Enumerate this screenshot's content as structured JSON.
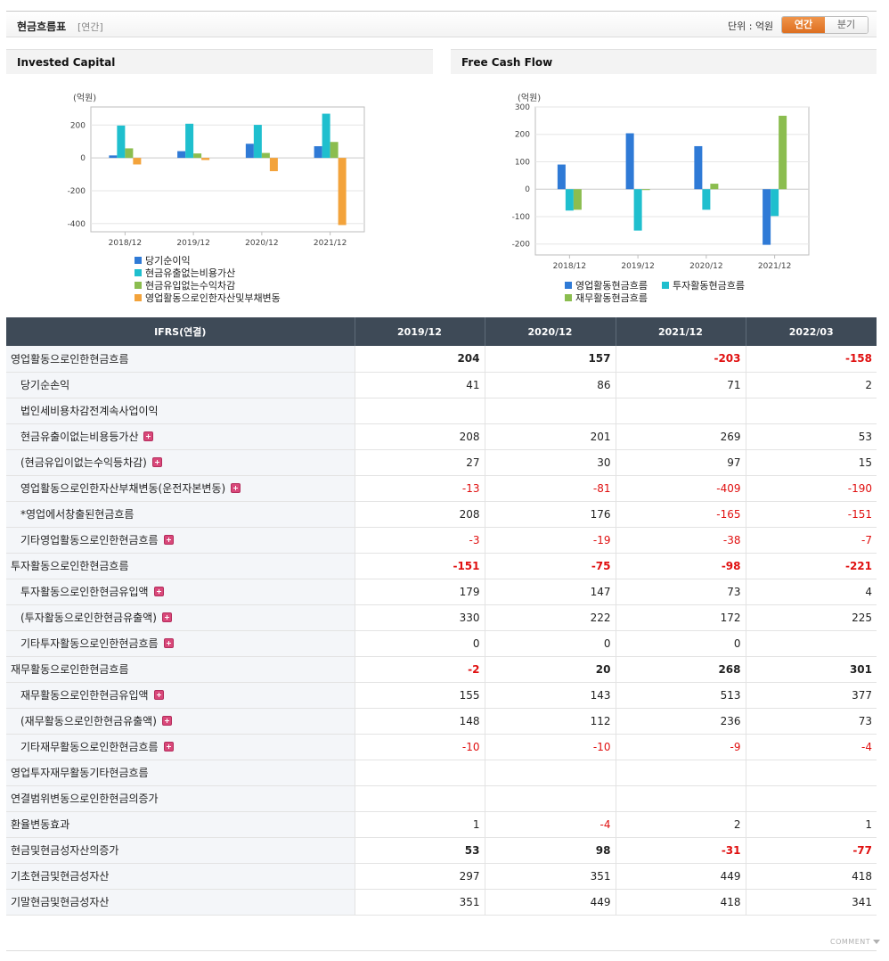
{
  "header": {
    "title": "현금흐름표",
    "sub": "[연간]",
    "unit": "단위 : 억원",
    "toggle": {
      "annual": "연간",
      "quarterly": "분기"
    }
  },
  "colors": {
    "blue": "#2f7ad6",
    "teal": "#1fbfce",
    "green": "#8bbd4f",
    "orange": "#f3a33b",
    "accent": "#e57b2f",
    "negative": "#e01010"
  },
  "charts": {
    "invested_capital": {
      "title": "Invested Capital",
      "unit_label": "(억원)"
    },
    "free_cash_flow": {
      "title": "Free Cash Flow",
      "unit_label": "(억원)"
    }
  },
  "chart_data": [
    {
      "type": "bar",
      "title": "Invested Capital",
      "ylabel": "(억원)",
      "categories": [
        "2018/12",
        "2019/12",
        "2020/12",
        "2021/12"
      ],
      "ylim": [
        -450,
        310
      ],
      "yticks": [
        200,
        0,
        -200,
        -400
      ],
      "legend_position": "bottom",
      "series": [
        {
          "name": "당기순이익",
          "color": "#2f7ad6",
          "values": [
            15,
            41,
            86,
            71
          ]
        },
        {
          "name": "현금유출없는비용가산",
          "color": "#1fbfce",
          "values": [
            197,
            208,
            201,
            269
          ]
        },
        {
          "name": "현금유입없는수익차감",
          "color": "#8bbd4f",
          "values": [
            58,
            27,
            30,
            97
          ]
        },
        {
          "name": "영업활동으로인한자산및부채변동",
          "color": "#f3a33b",
          "values": [
            -40,
            -13,
            -81,
            -409
          ]
        }
      ]
    },
    {
      "type": "bar",
      "title": "Free Cash Flow",
      "ylabel": "(억원)",
      "categories": [
        "2018/12",
        "2019/12",
        "2020/12",
        "2021/12"
      ],
      "ylim": [
        -240,
        300
      ],
      "yticks": [
        300,
        200,
        100,
        0,
        -100,
        -200
      ],
      "legend_position": "bottom",
      "series": [
        {
          "name": "영업활동현금흐름",
          "color": "#2f7ad6",
          "values": [
            90,
            204,
            157,
            -203
          ]
        },
        {
          "name": "투자활동현금흐름",
          "color": "#1fbfce",
          "values": [
            -78,
            -151,
            -75,
            -98
          ]
        },
        {
          "name": "재무활동현금흐름",
          "color": "#8bbd4f",
          "values": [
            -75,
            -2,
            20,
            268
          ]
        }
      ]
    }
  ],
  "table": {
    "header": [
      "IFRS(연결)",
      "2019/12",
      "2020/12",
      "2021/12",
      "2022/03"
    ],
    "rows": [
      {
        "label": "영업활동으로인한현금흐름",
        "level": 0,
        "bold": true,
        "plus": false,
        "values": [
          "204",
          "157",
          "-203",
          "-158"
        ]
      },
      {
        "label": "당기순손익",
        "level": 1,
        "bold": false,
        "plus": false,
        "values": [
          "41",
          "86",
          "71",
          "2"
        ]
      },
      {
        "label": "법인세비용차감전계속사업이익",
        "level": 1,
        "bold": false,
        "plus": false,
        "values": [
          "",
          "",
          "",
          ""
        ]
      },
      {
        "label": "현금유출이없는비용등가산",
        "level": 1,
        "bold": false,
        "plus": true,
        "values": [
          "208",
          "201",
          "269",
          "53"
        ]
      },
      {
        "label": "(현금유입이없는수익등차감)",
        "level": 1,
        "bold": false,
        "plus": true,
        "values": [
          "27",
          "30",
          "97",
          "15"
        ]
      },
      {
        "label": "영업활동으로인한자산부채변동(운전자본변동)",
        "level": 1,
        "bold": false,
        "plus": true,
        "values": [
          "-13",
          "-81",
          "-409",
          "-190"
        ]
      },
      {
        "label": "*영업에서창출된현금흐름",
        "level": 1,
        "bold": false,
        "plus": false,
        "values": [
          "208",
          "176",
          "-165",
          "-151"
        ]
      },
      {
        "label": "기타영업활동으로인한현금흐름",
        "level": 1,
        "bold": false,
        "plus": true,
        "values": [
          "-3",
          "-19",
          "-38",
          "-7"
        ]
      },
      {
        "label": "투자활동으로인한현금흐름",
        "level": 0,
        "bold": true,
        "plus": false,
        "values": [
          "-151",
          "-75",
          "-98",
          "-221"
        ]
      },
      {
        "label": "투자활동으로인한현금유입액",
        "level": 1,
        "bold": false,
        "plus": true,
        "values": [
          "179",
          "147",
          "73",
          "4"
        ]
      },
      {
        "label": "(투자활동으로인한현금유출액)",
        "level": 1,
        "bold": false,
        "plus": true,
        "values": [
          "330",
          "222",
          "172",
          "225"
        ]
      },
      {
        "label": "기타투자활동으로인한현금흐름",
        "level": 1,
        "bold": false,
        "plus": true,
        "values": [
          "0",
          "0",
          "0",
          ""
        ]
      },
      {
        "label": "재무활동으로인한현금흐름",
        "level": 0,
        "bold": true,
        "plus": false,
        "values": [
          "-2",
          "20",
          "268",
          "301"
        ]
      },
      {
        "label": "재무활동으로인한현금유입액",
        "level": 1,
        "bold": false,
        "plus": true,
        "values": [
          "155",
          "143",
          "513",
          "377"
        ]
      },
      {
        "label": "(재무활동으로인한현금유출액)",
        "level": 1,
        "bold": false,
        "plus": true,
        "values": [
          "148",
          "112",
          "236",
          "73"
        ]
      },
      {
        "label": "기타재무활동으로인한현금흐름",
        "level": 1,
        "bold": false,
        "plus": true,
        "values": [
          "-10",
          "-10",
          "-9",
          "-4"
        ]
      },
      {
        "label": "영업투자재무활동기타현금흐름",
        "level": 0,
        "bold": false,
        "plus": false,
        "values": [
          "",
          "",
          "",
          ""
        ]
      },
      {
        "label": "연결범위변동으로인한현금의증가",
        "level": 0,
        "bold": false,
        "plus": false,
        "values": [
          "",
          "",
          "",
          ""
        ]
      },
      {
        "label": "환율변동효과",
        "level": 0,
        "bold": false,
        "plus": false,
        "values": [
          "1",
          "-4",
          "2",
          "1"
        ]
      },
      {
        "label": "현금및현금성자산의증가",
        "level": 0,
        "bold": true,
        "plus": false,
        "values": [
          "53",
          "98",
          "-31",
          "-77"
        ]
      },
      {
        "label": "기초현금및현금성자산",
        "level": 0,
        "bold": false,
        "plus": false,
        "values": [
          "297",
          "351",
          "449",
          "418"
        ]
      },
      {
        "label": "기말현금및현금성자산",
        "level": 0,
        "bold": false,
        "plus": false,
        "values": [
          "351",
          "449",
          "418",
          "341"
        ]
      }
    ]
  },
  "footer": {
    "comment_label": "COMMENT"
  }
}
